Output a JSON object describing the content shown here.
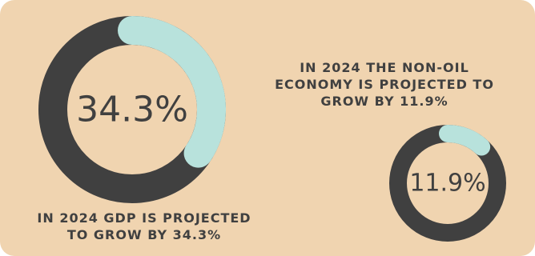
{
  "colors": {
    "background": "#f0d4b0",
    "ring_track": "#404040",
    "ring_value": "#b8e2dc",
    "text": "#404040"
  },
  "chart_data": [
    {
      "type": "pie",
      "variant": "donut",
      "value_label": "34.3%",
      "values": [
        34.3,
        65.7
      ],
      "caption": [
        "IN 2024 GDP IS PROJECTED",
        "TO GROW BY 34.3%"
      ]
    },
    {
      "type": "pie",
      "variant": "donut",
      "value_label": "11.9%",
      "values": [
        11.9,
        88.1
      ],
      "caption": [
        "IN 2024 THE NON-OIL",
        "ECONOMY IS PROJECTED TO",
        "GROW BY 11.9%"
      ]
    }
  ]
}
